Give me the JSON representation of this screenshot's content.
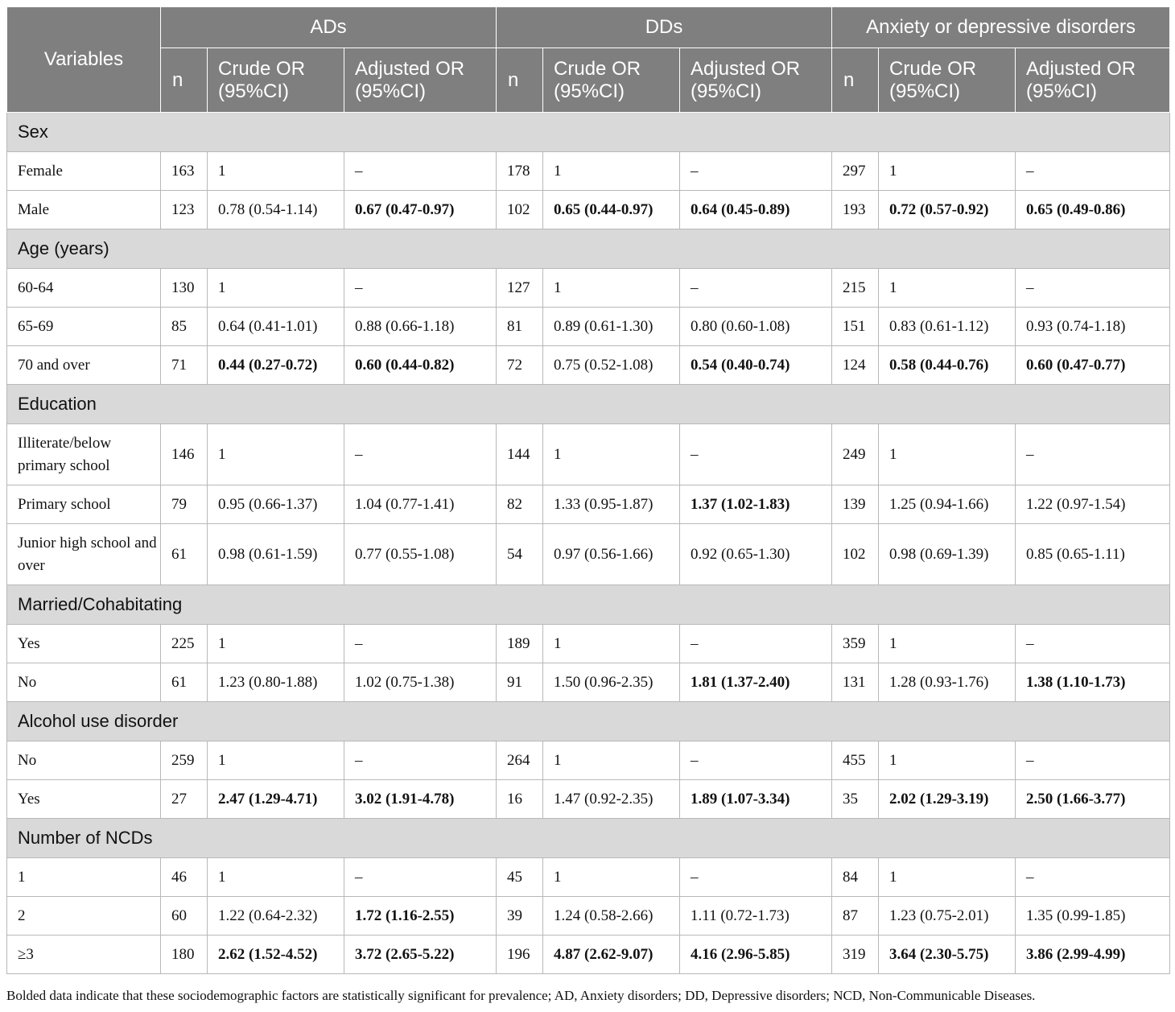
{
  "header": {
    "variables": "Variables",
    "groups": [
      "ADs",
      "DDs",
      "Anxiety or depressive disorders"
    ],
    "n": "n",
    "crude_or": "Crude OR (95%CI)",
    "adjusted_or": "Adjusted OR (95%CI)"
  },
  "sections": [
    {
      "title": "Sex",
      "rows": [
        {
          "label": "Female",
          "cells": [
            {
              "t": "163"
            },
            {
              "t": "1"
            },
            {
              "t": "–"
            },
            {
              "t": "178"
            },
            {
              "t": "1"
            },
            {
              "t": "–"
            },
            {
              "t": "297"
            },
            {
              "t": "1"
            },
            {
              "t": "–"
            }
          ]
        },
        {
          "label": "Male",
          "cells": [
            {
              "t": "123"
            },
            {
              "t": "0.78 (0.54-1.14)"
            },
            {
              "t": "0.67 (0.47-0.97)",
              "b": true
            },
            {
              "t": "102"
            },
            {
              "t": "0.65 (0.44-0.97)",
              "b": true
            },
            {
              "t": "0.64 (0.45-0.89)",
              "b": true
            },
            {
              "t": "193"
            },
            {
              "t": "0.72 (0.57-0.92)",
              "b": true
            },
            {
              "t": "0.65 (0.49-0.86)",
              "b": true
            }
          ]
        }
      ]
    },
    {
      "title": "Age (years)",
      "rows": [
        {
          "label": "60-64",
          "cells": [
            {
              "t": "130"
            },
            {
              "t": "1"
            },
            {
              "t": "–"
            },
            {
              "t": "127"
            },
            {
              "t": "1"
            },
            {
              "t": "–"
            },
            {
              "t": "215"
            },
            {
              "t": "1"
            },
            {
              "t": "–"
            }
          ]
        },
        {
          "label": "65-69",
          "cells": [
            {
              "t": "85"
            },
            {
              "t": "0.64 (0.41-1.01)"
            },
            {
              "t": "0.88 (0.66-1.18)"
            },
            {
              "t": "81"
            },
            {
              "t": "0.89 (0.61-1.30)"
            },
            {
              "t": "0.80 (0.60-1.08)"
            },
            {
              "t": "151"
            },
            {
              "t": "0.83 (0.61-1.12)"
            },
            {
              "t": "0.93 (0.74-1.18)"
            }
          ]
        },
        {
          "label": "70 and over",
          "cells": [
            {
              "t": "71"
            },
            {
              "t": "0.44 (0.27-0.72)",
              "b": true
            },
            {
              "t": "0.60 (0.44-0.82)",
              "b": true
            },
            {
              "t": "72"
            },
            {
              "t": "0.75 (0.52-1.08)"
            },
            {
              "t": "0.54 (0.40-0.74)",
              "b": true
            },
            {
              "t": "124"
            },
            {
              "t": "0.58 (0.44-0.76)",
              "b": true
            },
            {
              "t": "0.60 (0.47-0.77)",
              "b": true
            }
          ]
        }
      ]
    },
    {
      "title": "Education",
      "rows": [
        {
          "label": "Illiterate/below primary school",
          "tall": true,
          "cells": [
            {
              "t": "146"
            },
            {
              "t": "1"
            },
            {
              "t": "–"
            },
            {
              "t": "144"
            },
            {
              "t": "1"
            },
            {
              "t": "–"
            },
            {
              "t": "249"
            },
            {
              "t": "1"
            },
            {
              "t": "–"
            }
          ]
        },
        {
          "label": "Primary school",
          "cells": [
            {
              "t": "79"
            },
            {
              "t": "0.95 (0.66-1.37)"
            },
            {
              "t": "1.04 (0.77-1.41)"
            },
            {
              "t": "82"
            },
            {
              "t": "1.33 (0.95-1.87)"
            },
            {
              "t": "1.37 (1.02-1.83)",
              "b": true
            },
            {
              "t": "139"
            },
            {
              "t": "1.25 (0.94-1.66)"
            },
            {
              "t": "1.22 (0.97-1.54)"
            }
          ]
        },
        {
          "label": "Junior high school and over",
          "tall": true,
          "cells": [
            {
              "t": "61"
            },
            {
              "t": "0.98 (0.61-1.59)"
            },
            {
              "t": "0.77 (0.55-1.08)"
            },
            {
              "t": "54"
            },
            {
              "t": "0.97 (0.56-1.66)"
            },
            {
              "t": "0.92 (0.65-1.30)"
            },
            {
              "t": "102"
            },
            {
              "t": "0.98 (0.69-1.39)"
            },
            {
              "t": "0.85 (0.65-1.11)"
            }
          ]
        }
      ]
    },
    {
      "title": "Married/Cohabitating",
      "rows": [
        {
          "label": "Yes",
          "cells": [
            {
              "t": "225"
            },
            {
              "t": "1"
            },
            {
              "t": "–"
            },
            {
              "t": "189"
            },
            {
              "t": "1"
            },
            {
              "t": "–"
            },
            {
              "t": "359"
            },
            {
              "t": "1"
            },
            {
              "t": "–"
            }
          ]
        },
        {
          "label": "No",
          "cells": [
            {
              "t": "61"
            },
            {
              "t": "1.23 (0.80-1.88)"
            },
            {
              "t": "1.02 (0.75-1.38)"
            },
            {
              "t": "91"
            },
            {
              "t": "1.50 (0.96-2.35)"
            },
            {
              "t": "1.81 (1.37-2.40)",
              "b": true
            },
            {
              "t": "131"
            },
            {
              "t": "1.28 (0.93-1.76)"
            },
            {
              "t": "1.38 (1.10-1.73)",
              "b": true
            }
          ]
        }
      ]
    },
    {
      "title": "Alcohol use disorder",
      "rows": [
        {
          "label": "No",
          "cells": [
            {
              "t": "259"
            },
            {
              "t": "1"
            },
            {
              "t": "–"
            },
            {
              "t": "264"
            },
            {
              "t": "1"
            },
            {
              "t": "–"
            },
            {
              "t": "455"
            },
            {
              "t": "1"
            },
            {
              "t": "–"
            }
          ]
        },
        {
          "label": "Yes",
          "cells": [
            {
              "t": "27"
            },
            {
              "t": "2.47 (1.29-4.71)",
              "b": true
            },
            {
              "t": "3.02 (1.91-4.78)",
              "b": true
            },
            {
              "t": "16"
            },
            {
              "t": "1.47 (0.92-2.35)"
            },
            {
              "t": "1.89 (1.07-3.34)",
              "b": true
            },
            {
              "t": "35"
            },
            {
              "t": "2.02 (1.29-3.19)",
              "b": true
            },
            {
              "t": "2.50 (1.66-3.77)",
              "b": true
            }
          ]
        }
      ]
    },
    {
      "title": "Number of NCDs",
      "rows": [
        {
          "label": "1",
          "cells": [
            {
              "t": "46"
            },
            {
              "t": "1"
            },
            {
              "t": "–"
            },
            {
              "t": "45"
            },
            {
              "t": "1"
            },
            {
              "t": "–"
            },
            {
              "t": "84"
            },
            {
              "t": "1"
            },
            {
              "t": "–"
            }
          ]
        },
        {
          "label": "2",
          "cells": [
            {
              "t": "60"
            },
            {
              "t": "1.22 (0.64-2.32)"
            },
            {
              "t": "1.72 (1.16-2.55)",
              "b": true
            },
            {
              "t": "39"
            },
            {
              "t": "1.24 (0.58-2.66)"
            },
            {
              "t": "1.11 (0.72-1.73)"
            },
            {
              "t": "87"
            },
            {
              "t": "1.23 (0.75-2.01)"
            },
            {
              "t": "1.35 (0.99-1.85)"
            }
          ]
        },
        {
          "label": "≥3",
          "cells": [
            {
              "t": "180"
            },
            {
              "t": "2.62 (1.52-4.52)",
              "b": true
            },
            {
              "t": "3.72 (2.65-5.22)",
              "b": true
            },
            {
              "t": "196"
            },
            {
              "t": "4.87 (2.62-9.07)",
              "b": true
            },
            {
              "t": "4.16 (2.96-5.85)",
              "b": true
            },
            {
              "t": "319"
            },
            {
              "t": "3.64 (2.30-5.75)",
              "b": true
            },
            {
              "t": "3.86 (2.99-4.99)",
              "b": true
            }
          ]
        }
      ]
    }
  ],
  "footnote": "Bolded data indicate that these sociodemographic factors are statistically significant for prevalence; AD, Anxiety disorders; DD, Depressive disorders; NCD, Non-Communicable Diseases."
}
